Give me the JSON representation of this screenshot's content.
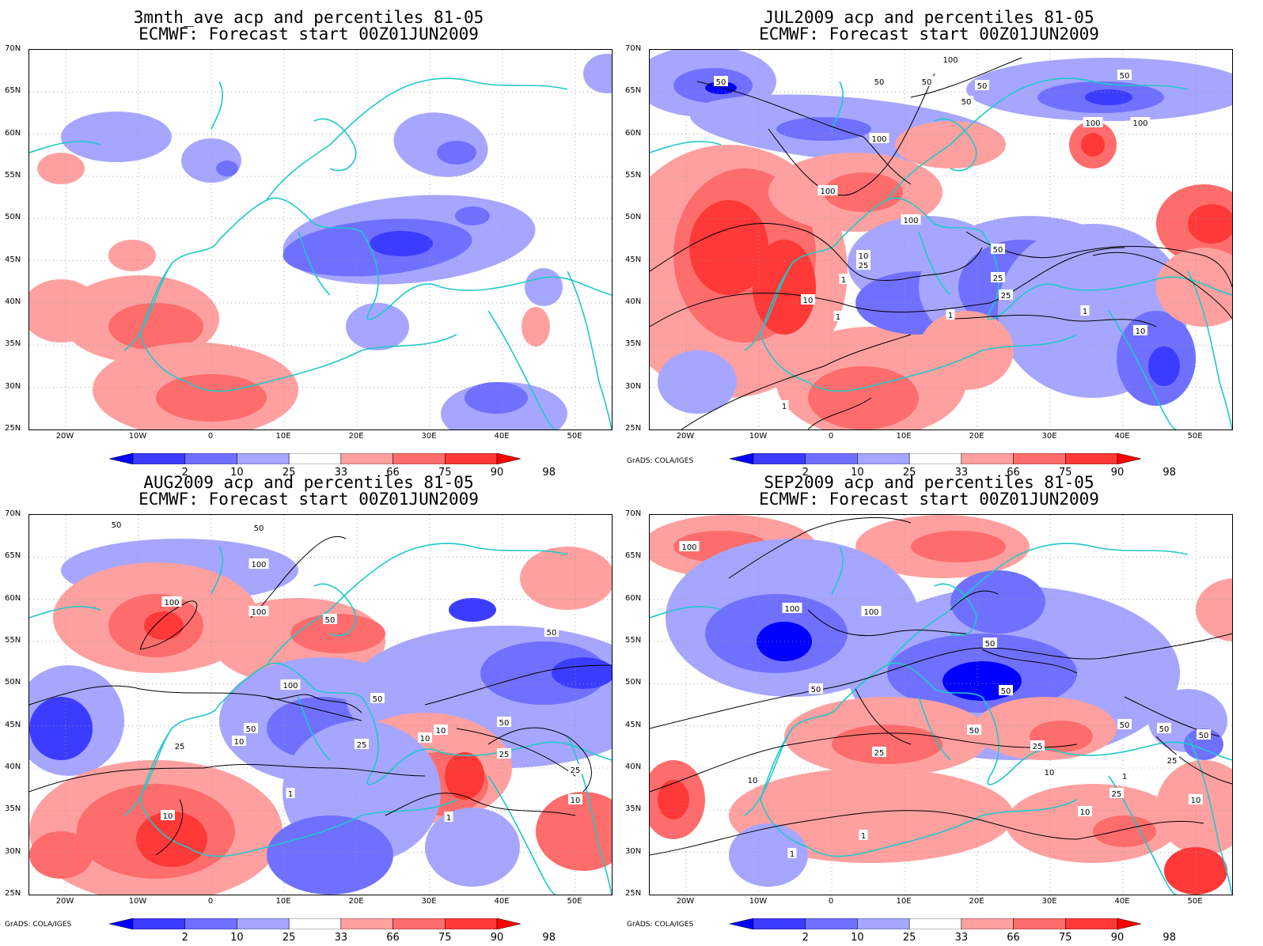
{
  "panels": [
    {
      "title1": "3mnth_ave acp and percentiles 81-05",
      "title2": "ECMWF: Forecast start 00Z01JUN2009"
    },
    {
      "title1": "JUL2009 acp and percentiles 81-05",
      "title2": "ECMWF: Forecast start 00Z01JUN2009"
    },
    {
      "title1": "AUG2009 acp and percentiles 81-05",
      "title2": "ECMWF: Forecast start 00Z01JUN2009"
    },
    {
      "title1": "SEP2009 acp and percentiles 81-05",
      "title2": "ECMWF: Forecast start 00Z01JUN2009"
    }
  ],
  "lat_labels": [
    "70N",
    "65N",
    "60N",
    "55N",
    "50N",
    "45N",
    "40N",
    "35N",
    "30N",
    "25N"
  ],
  "lon_labels": [
    "20W",
    "10W",
    "0",
    "10E",
    "20E",
    "30E",
    "40E",
    "50E"
  ],
  "colorbar": {
    "labels": [
      "2",
      "10",
      "25",
      "33",
      "66",
      "75",
      "90",
      "98"
    ],
    "colors": [
      "#0000ff",
      "#3c3cff",
      "#7070ff",
      "#a6a6ff",
      "#ffffff",
      "#ffa0a0",
      "#ff6c6c",
      "#ff3838",
      "#ff0000"
    ]
  },
  "credit": "GrADS: COLA/IGES",
  "contour_labels": {
    "jul": [
      "50",
      "100",
      "50",
      "50",
      "50",
      "100",
      "100",
      "50",
      "100",
      "100",
      "50",
      "25",
      "10",
      "1",
      "1",
      "10",
      "25",
      "50",
      "100",
      "25",
      "10",
      "1",
      "1",
      "1"
    ],
    "aug": [
      "50",
      "50",
      "100",
      "100",
      "100",
      "50",
      "50",
      "100",
      "50",
      "10",
      "25",
      "10",
      "10",
      "50",
      "25",
      "25",
      "10",
      "1",
      "1",
      "10",
      "50",
      "25"
    ],
    "sep": [
      "100",
      "100",
      "100",
      "50",
      "50",
      "50",
      "25",
      "25",
      "50",
      "50",
      "10",
      "10",
      "1",
      "1",
      "25",
      "50",
      "10",
      "1",
      "10",
      "50",
      "25"
    ]
  }
}
